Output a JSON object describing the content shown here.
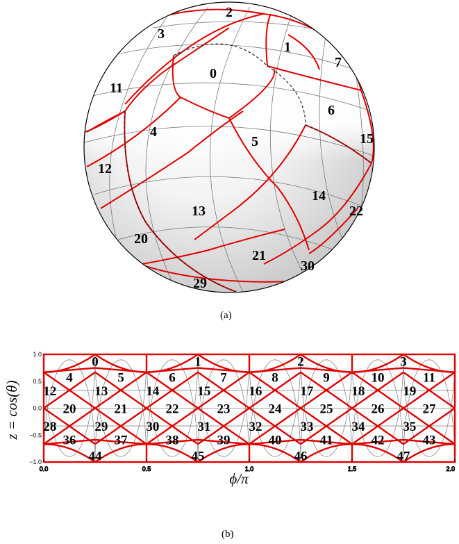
{
  "panel_a": {
    "caption": "(a)",
    "pixel_labels": [
      "0",
      "1",
      "2",
      "3",
      "4",
      "5",
      "6",
      "7",
      "11",
      "12",
      "13",
      "14",
      "15",
      "20",
      "21",
      "22",
      "29",
      "30"
    ]
  },
  "panel_b": {
    "caption": "(b)",
    "ylabel": "z = cos(θ)",
    "xlabel": "ϕ/π",
    "x_ticks": [
      "0.0",
      "0.5",
      "1.0",
      "1.5",
      "2.0"
    ],
    "y_ticks": [
      "1.0",
      "0.5",
      "0.0",
      "−0.5",
      "−1.0"
    ],
    "pixel_labels": [
      "0",
      "1",
      "2",
      "3",
      "4",
      "5",
      "6",
      "7",
      "8",
      "9",
      "10",
      "11",
      "12",
      "13",
      "14",
      "15",
      "16",
      "17",
      "18",
      "19",
      "20",
      "21",
      "22",
      "23",
      "24",
      "25",
      "26",
      "27",
      "28",
      "29",
      "30",
      "31",
      "32",
      "33",
      "34",
      "35",
      "36",
      "37",
      "38",
      "39",
      "40",
      "41",
      "42",
      "43",
      "44",
      "45",
      "46",
      "47"
    ]
  },
  "colors": {
    "boundary": "#e00000",
    "grid": "#888888",
    "shade": "#d0d0d0"
  }
}
